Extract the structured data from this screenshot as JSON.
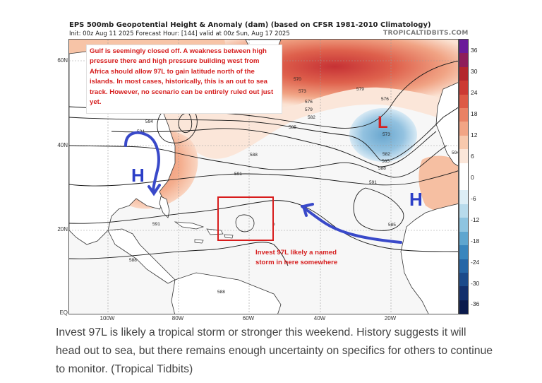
{
  "header": {
    "title": "EPS 500mb Geopotential Height & Anomaly (dam) (based on CFSR 1981-2010 Climatology)",
    "subtitle": "Init: 00z Aug 11 2025   Forecast Hour: [144]   valid at 00z Sun, Aug 17 2025",
    "credit": "TROPICALTIDBITS.COM"
  },
  "map": {
    "lat_labels": [
      "60N",
      "40N",
      "20N",
      "EQ"
    ],
    "lon_labels": [
      "100W",
      "80W",
      "60W",
      "40W",
      "20W"
    ],
    "contour_labels": [
      "570",
      "573",
      "576",
      "579",
      "582",
      "585",
      "588",
      "591",
      "594",
      "579",
      "576",
      "573",
      "582",
      "585",
      "588",
      "594",
      "594",
      "591",
      "591",
      "588",
      "588",
      "585"
    ],
    "pressure_centers": [
      {
        "label": "H",
        "color": "#2c3fc7"
      },
      {
        "label": "L",
        "color": "#d42222"
      },
      {
        "label": "H",
        "color": "#2c3fc7"
      }
    ]
  },
  "colorbar": {
    "labels": [
      "36",
      "30",
      "24",
      "18",
      "12",
      "6",
      "0",
      "-6",
      "-12",
      "-18",
      "-24",
      "-30",
      "-36"
    ],
    "colors": [
      "#6a1b9a",
      "#8e1e5a",
      "#b3262c",
      "#cc3a33",
      "#dd5a45",
      "#e98265",
      "#f2a585",
      "#f8c9ad",
      "#fbe6d9",
      "#ffffff",
      "#ffffff",
      "#ddeef6",
      "#b8dbec",
      "#8ec4e0",
      "#5fa6cf",
      "#3a86bd",
      "#2566a6",
      "#1b4a8a",
      "#122f6b",
      "#0a1a4c"
    ]
  },
  "annotations": {
    "note": "Gulf is seemingly closed off. A weakness between high pressure there and high pressure building west from Africa should allow 97L to gain latitude north of the islands. In most cases, historically, this is an out to sea track. However, no scenario can be entirely ruled out just yet.",
    "invest_note": "Invest 97L likely a named storm in here somewhere"
  },
  "caption": "Invest 97L is likely a tropical storm or stronger this weekend. History suggests it will head out to sea, but there remains enough uncertainty on specifics for others to continue to monitor. (Tropical Tidbits)"
}
